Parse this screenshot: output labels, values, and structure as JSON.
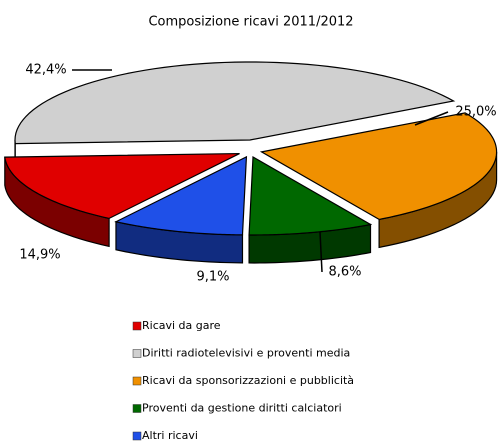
{
  "chart_data": {
    "type": "pie3d",
    "title": "Composizione ricavi 2011/2012",
    "categories": [
      "Ricavi da gare",
      "Diritti radiotelevisivi e proventi media",
      "Ricavi da sponsorizzazioni e pubblicità",
      "Proventi da gestione diritti calciatori",
      "Altri ricavi"
    ],
    "values": [
      14.9,
      42.4,
      25.0,
      8.6,
      9.1
    ],
    "value_labels": [
      "14,9%",
      "42,4%",
      "25,0%",
      "8,6%",
      "9,1%"
    ],
    "colors": [
      "#e00000",
      "#d0d0d0",
      "#f09000",
      "#006800",
      "#1f50e8"
    ],
    "legend": "bottom"
  }
}
